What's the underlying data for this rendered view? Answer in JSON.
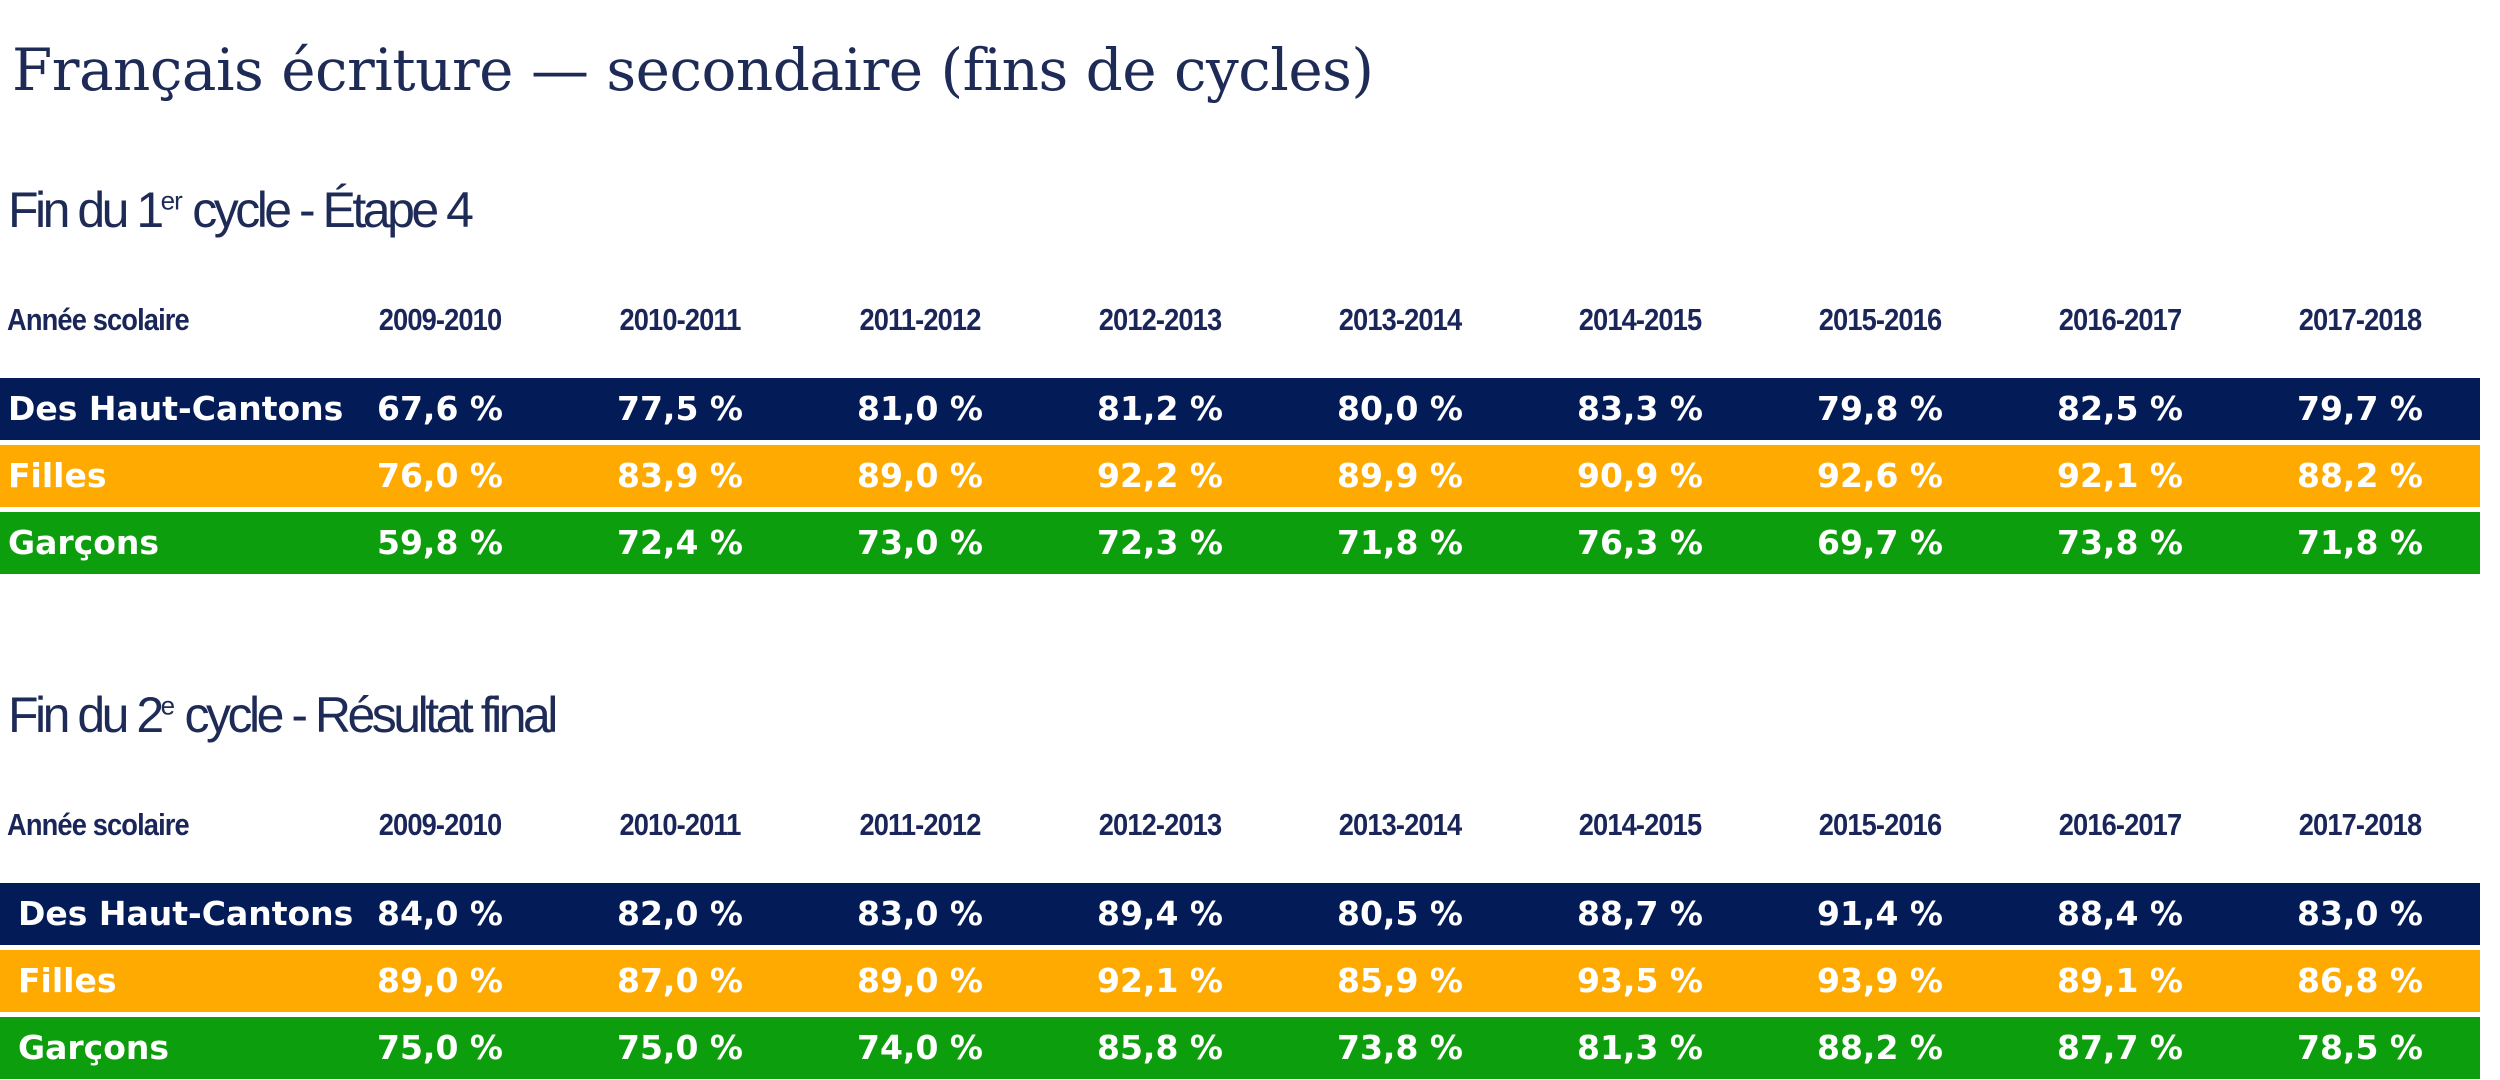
{
  "title": "Français écriture — secondaire (fins de cycles)",
  "sections": [
    {
      "title_main": "Fin du 1",
      "title_sup": "er",
      "title_rest": " cycle - Étape 4",
      "header_label": "Année scolaire",
      "years": [
        "2009-2010",
        "2010-2011",
        "2011-2012",
        "2012-2013",
        "2013-2014",
        "2014-2015",
        "2015-2016",
        "2016-2017",
        "2017-2018"
      ],
      "rows": [
        {
          "label": "Des Haut-Cantons",
          "values": [
            "67,6 %",
            "77,5 %",
            "81,0 %",
            "81,2 %",
            "80,0 %",
            "83,3 %",
            "79,8 %",
            "82,5 %",
            "79,7 %"
          ]
        },
        {
          "label": "Filles",
          "values": [
            "76,0 %",
            "83,9 %",
            "89,0 %",
            "92,2 %",
            "89,9 %",
            "90,9 %",
            "92,6 %",
            "92,1 %",
            "88,2 %"
          ]
        },
        {
          "label": "Garçons",
          "values": [
            "59,8 %",
            "72,4 %",
            "73,0 %",
            "72,3 %",
            "71,8 %",
            "76,3 %",
            "69,7 %",
            "73,8 %",
            "71,8 %"
          ]
        }
      ]
    },
    {
      "title_main": "Fin du 2",
      "title_sup": "e",
      "title_rest": " cycle - Résultat final",
      "header_label": "Année scolaire",
      "years": [
        "2009-2010",
        "2010-2011",
        "2011-2012",
        "2012-2013",
        "2013-2014",
        "2014-2015",
        "2015-2016",
        "2016-2017",
        "2017-2018"
      ],
      "rows": [
        {
          "label": "Des Haut-Cantons",
          "values": [
            "84,0 %",
            "82,0 %",
            "83,0 %",
            "89,4 %",
            "80,5 %",
            "88,7 %",
            "91,4 %",
            "88,4 %",
            "83,0 %"
          ]
        },
        {
          "label": "Filles",
          "values": [
            "89,0 %",
            "87,0 %",
            "89,0 %",
            "92,1 %",
            "85,9 %",
            "93,5 %",
            "93,9 %",
            "89,1 %",
            "86,8 %"
          ]
        },
        {
          "label": "Garçons",
          "values": [
            "75,0 %",
            "75,0 %",
            "74,0 %",
            "85,8 %",
            "73,8 %",
            "81,3 %",
            "88,2 %",
            "87,7 %",
            "78,5 %"
          ]
        }
      ]
    }
  ],
  "colors": {
    "row_total": "#031c58",
    "row_filles": "#ffaa00",
    "row_garcons": "#0d9e0d",
    "header_text": "#1a2659"
  }
}
